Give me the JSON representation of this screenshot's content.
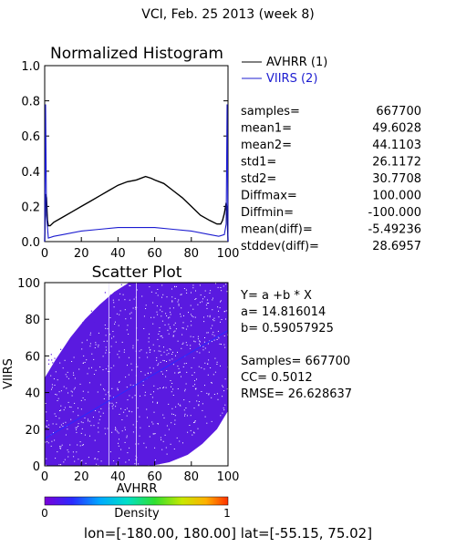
{
  "header": {
    "title": "VCI,  Feb. 25 2013 (week 8)"
  },
  "colors": {
    "avhrr": "#000000",
    "viirs": "#1c1cd0",
    "scatter_fill": "#5a1ae0",
    "fit_line": "#2a2aff"
  },
  "chart_data": [
    {
      "type": "line",
      "title": "Normalized Histogram",
      "xlim": [
        0,
        100
      ],
      "ylim": [
        0,
        1.0
      ],
      "x_ticks": [
        0,
        20,
        40,
        60,
        80,
        100
      ],
      "y_ticks": [
        0.0,
        0.2,
        0.4,
        0.6,
        0.8,
        1.0
      ],
      "x_tick_labels": [
        "0",
        "20",
        "40",
        "60",
        "80",
        "100"
      ],
      "y_tick_labels": [
        "0.0",
        "0.2",
        "0.4",
        "0.6",
        "0.8",
        "1.0"
      ],
      "legend": [
        "AVHRR (1)",
        "VIIRS (2)"
      ],
      "series": [
        {
          "name": "AVHRR (1)",
          "color": "#000000",
          "x": [
            0,
            0.5,
            1,
            1.5,
            2,
            3,
            5,
            10,
            15,
            20,
            25,
            30,
            35,
            40,
            45,
            50,
            55,
            58,
            60,
            65,
            70,
            75,
            80,
            85,
            90,
            94,
            96,
            97,
            98,
            99,
            99.5,
            100
          ],
          "y": [
            0.0,
            0.27,
            0.25,
            0.12,
            0.09,
            0.09,
            0.11,
            0.14,
            0.17,
            0.2,
            0.23,
            0.26,
            0.29,
            0.32,
            0.34,
            0.35,
            0.37,
            0.36,
            0.35,
            0.33,
            0.29,
            0.25,
            0.2,
            0.15,
            0.12,
            0.1,
            0.1,
            0.12,
            0.16,
            0.22,
            0.19,
            0.0
          ]
        },
        {
          "name": "VIIRS (2)",
          "color": "#1c1cd0",
          "x": [
            0,
            0.5,
            1,
            2,
            5,
            10,
            20,
            30,
            40,
            50,
            60,
            70,
            80,
            90,
            95,
            98,
            99,
            99.5,
            100
          ],
          "y": [
            0.0,
            0.78,
            0.15,
            0.02,
            0.03,
            0.04,
            0.06,
            0.07,
            0.08,
            0.08,
            0.08,
            0.07,
            0.06,
            0.04,
            0.03,
            0.04,
            0.1,
            0.78,
            0.0
          ]
        }
      ]
    },
    {
      "type": "scatter",
      "title": "Scatter Plot",
      "xlabel": "AVHRR",
      "ylabel": "VIIRS",
      "xlim": [
        0,
        100
      ],
      "ylim": [
        0,
        100
      ],
      "x_ticks": [
        0,
        20,
        40,
        60,
        80,
        100
      ],
      "y_ticks": [
        0,
        20,
        40,
        60,
        80,
        100
      ],
      "x_tick_labels": [
        "0",
        "20",
        "40",
        "60",
        "80",
        "100"
      ],
      "y_tick_labels": [
        "0",
        "20",
        "40",
        "60",
        "80",
        "100"
      ],
      "regression": {
        "a": 14.816014,
        "b": 0.59057925
      },
      "colorbar": {
        "label": "Density",
        "min_label": "0",
        "max_label": "1"
      }
    }
  ],
  "stats": {
    "rows": [
      {
        "label": "samples=",
        "value": "667700"
      },
      {
        "label": "mean1=",
        "value": "49.6028"
      },
      {
        "label": "mean2=",
        "value": "44.1103"
      },
      {
        "label": "std1=",
        "value": "26.1172"
      },
      {
        "label": "std2=",
        "value": "30.7708"
      },
      {
        "label": "Diffmax=",
        "value": "100.000"
      },
      {
        "label": "Diffmin=",
        "value": "-100.000"
      },
      {
        "label": "mean(diff)=",
        "value": "-5.49236"
      },
      {
        "label": "stddev(diff)=",
        "value": "28.6957"
      }
    ]
  },
  "regression_text": {
    "equation": "Y= a +b * X",
    "a": "a= 14.816014",
    "b": "b= 0.59057925",
    "samples": "Samples= 667700",
    "cc": "CC=  0.5012",
    "rmse": "RMSE= 26.628637"
  },
  "footer": {
    "range": "lon=[-180.00, 180.00] lat=[-55.15, 75.02]"
  }
}
